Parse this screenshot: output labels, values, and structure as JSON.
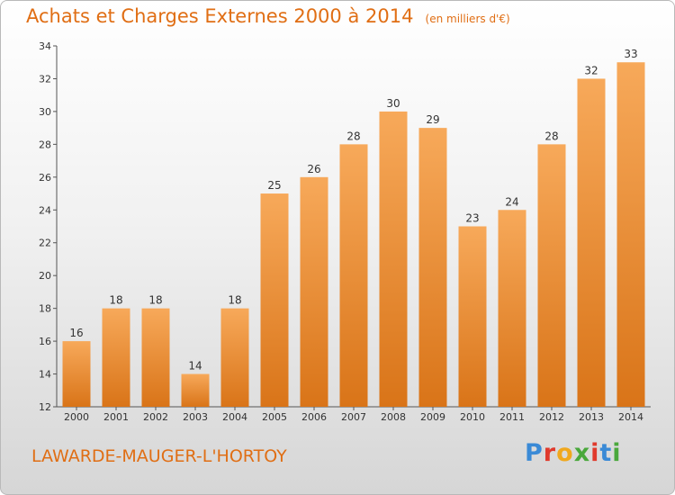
{
  "title": "Achats et Charges Externes 2000 à 2014",
  "subtitle": "(en milliers d'€)",
  "location": "LAWARDE-MAUGER-L'HORTOY",
  "brand": {
    "letters": [
      "P",
      "r",
      "o",
      "x",
      "i",
      "t",
      "i"
    ],
    "colors": [
      "#3a8ad6",
      "#e03a2c",
      "#f0a81e",
      "#4aa83c",
      "#e03a2c",
      "#3a8ad6",
      "#4aa83c"
    ]
  },
  "colors": {
    "bar_light": "#f7a95a",
    "bar_dark": "#d97418",
    "accent": "#e06e14"
  },
  "chart_data": {
    "type": "bar",
    "title": "Achats et Charges Externes 2000 à 2014",
    "subtitle": "(en milliers d'€)",
    "categories": [
      "2000",
      "2001",
      "2002",
      "2003",
      "2004",
      "2005",
      "2006",
      "2007",
      "2008",
      "2009",
      "2010",
      "2011",
      "2012",
      "2013",
      "2014"
    ],
    "values": [
      16,
      18,
      18,
      14,
      18,
      25,
      26,
      28,
      30,
      29,
      23,
      24,
      28,
      32,
      33
    ],
    "ylim": [
      12,
      34
    ],
    "yticks": [
      12,
      14,
      16,
      18,
      20,
      22,
      24,
      26,
      28,
      30,
      32,
      34
    ],
    "grid": false,
    "xlabel": "",
    "ylabel": ""
  }
}
